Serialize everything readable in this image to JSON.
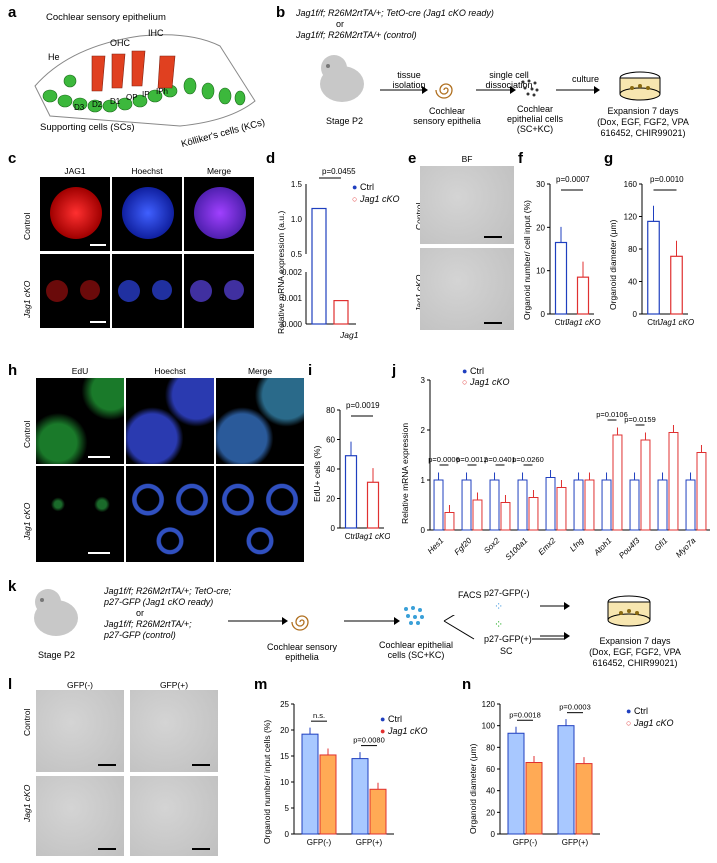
{
  "panels": {
    "a": {
      "letter": "a",
      "title": "Cochlear sensory epithelium",
      "labels": {
        "he": "He",
        "ohc": "OHC",
        "ihc": "IHC",
        "d3": "D3",
        "d2": "D2",
        "d1": "D1",
        "op": "OP",
        "ip": "IP",
        "iph": "IPh",
        "sc": "Supporting cells (SCs)",
        "kc": "Kölliker's cells (KCs)"
      }
    },
    "b": {
      "letter": "b",
      "geno1": "Jag1f/f; R26M2rtTA/+; TetO-cre (Jag1 cKO ready)",
      "or": "or",
      "geno2": "Jag1f/f; R26M2rtTA/+ (control)",
      "stage": "Stage P2",
      "step1": "tissue isolation",
      "step2": "single cell dissociation",
      "step3": "culture",
      "tissue": "Cochlear sensory epithelia",
      "cells": "Cochlear epithelial cells (SC+KC)",
      "exp1": "Expansion 7 days",
      "exp2": "(Dox, EGF, FGF2, VPA",
      "exp3": "616452, CHIR99021)"
    },
    "c": {
      "letter": "c",
      "col1": "JAG1",
      "col2": "Hoechst",
      "col3": "Merge",
      "row1": "Control",
      "row2": "Jag1 cKO"
    },
    "e": {
      "letter": "e",
      "title": "BF",
      "row1": "Control",
      "row2": "Jag1 cKO"
    },
    "h": {
      "letter": "h",
      "col1": "EdU",
      "col2": "Hoechst",
      "col3": "Merge",
      "row1": "Control",
      "row2": "Jag1 cKO"
    },
    "k": {
      "letter": "k",
      "geno1": "Jag1f/f; R26M2rtTA/+; TetO-cre;",
      "geno1b": "p27-GFP (Jag1 cKO ready)",
      "or": "or",
      "geno2": "Jag1f/f; R26M2rtTA/+;",
      "geno2b": "p27-GFP (control)",
      "stage": "Stage P2",
      "tissue": "Cochlear sensory epithelia",
      "cells": "Cochlear epithelial cells (SC+KC)",
      "facs": "FACS",
      "neg": "p27-GFP(-)",
      "pos": "p27-GFP(+)",
      "sc": "SC",
      "exp1": "Expansion 7 days",
      "exp2": "(Dox, EGF, FGF2, VPA",
      "exp3": "616452, CHIR99021)"
    },
    "l": {
      "letter": "l",
      "col1": "GFP(-)",
      "col2": "GFP(+)",
      "row1": "Control",
      "row2": "Jag1 cKO"
    }
  },
  "legend": {
    "ctrl": "Ctrl",
    "cko": "Jag1 cKO"
  },
  "colors": {
    "blue": "#1f3fbf",
    "red": "#e03030",
    "lightblue": "#a8c8ff",
    "orange": "#ffaa55"
  },
  "chart_data": [
    {
      "id": "d",
      "type": "bar",
      "ylabel": "Relative mRNA expression (a.u.)",
      "xlabel": "Jag1",
      "categories": [
        "Ctrl",
        "Jag1 cKO"
      ],
      "values": [
        1.15,
        0.0009
      ],
      "pvalue": "p=0.0455",
      "yticks_top": [
        "1.5",
        "1.0",
        "0.5"
      ],
      "yticks_bottom": [
        "0.002",
        "0.001",
        "0.000"
      ]
    },
    {
      "id": "f",
      "type": "bar",
      "ylabel": "Organoid number/ cell input (%)",
      "categories": [
        "Ctrl",
        "Jag1 cKO"
      ],
      "values": [
        16.5,
        8.5
      ],
      "ylim": [
        0,
        30
      ],
      "yticks": [
        "0",
        "10",
        "20",
        "30"
      ],
      "pvalue": "p=0.0007"
    },
    {
      "id": "g",
      "type": "bar",
      "ylabel": "Organoid diameter (μm)",
      "categories": [
        "Ctrl",
        "Jag1 cKO"
      ],
      "values": [
        114,
        71
      ],
      "ylim": [
        0,
        160
      ],
      "yticks": [
        "0",
        "40",
        "80",
        "120",
        "160"
      ],
      "pvalue": "p=0.0010"
    },
    {
      "id": "i",
      "type": "bar",
      "ylabel": "EdU+ cells (%)",
      "categories": [
        "Ctrl",
        "Jag1 cKO"
      ],
      "values": [
        49,
        31
      ],
      "ylim": [
        0,
        80
      ],
      "yticks": [
        "0",
        "20",
        "40",
        "60",
        "80"
      ],
      "pvalue": "p=0.0019"
    },
    {
      "id": "j",
      "type": "bar",
      "ylabel": "Relative mRNA expression",
      "ylim": [
        0,
        3
      ],
      "yticks": [
        "0",
        "1",
        "2",
        "3"
      ],
      "categories": [
        "Hes1",
        "Fgf20",
        "Sox2",
        "S100a1",
        "Emx2",
        "Lfng",
        "Atoh1",
        "Pou4f3",
        "Gfi1",
        "Myo7a"
      ],
      "series": [
        {
          "name": "Ctrl",
          "values": [
            1.0,
            1.0,
            1.0,
            1.0,
            1.05,
            1.0,
            1.0,
            1.0,
            1.0,
            1.0
          ]
        },
        {
          "name": "Jag1 cKO",
          "values": [
            0.35,
            0.6,
            0.55,
            0.65,
            0.85,
            1.0,
            1.9,
            1.8,
            1.95,
            1.55
          ]
        }
      ],
      "pvalues": [
        "p=0.0006",
        "p=0.0012",
        "p=0.0401",
        "p=0.0260",
        "",
        "",
        "p=0.0106",
        "p=0.0159",
        "",
        ""
      ]
    },
    {
      "id": "m",
      "type": "bar",
      "ylabel": "Organoid number/ input cells (%)",
      "ylim": [
        0,
        25
      ],
      "yticks": [
        "0",
        "5",
        "10",
        "15",
        "20",
        "25"
      ],
      "categories": [
        "GFP(-)",
        "GFP(+)"
      ],
      "series": [
        {
          "name": "Ctrl",
          "values": [
            19.2,
            14.5
          ]
        },
        {
          "name": "Jag1 cKO",
          "values": [
            15.2,
            8.6
          ]
        }
      ],
      "pvalues": [
        "n.s.",
        "p=0.0080"
      ]
    },
    {
      "id": "n",
      "type": "bar",
      "ylabel": "Organoid diameter (μm)",
      "ylim": [
        0,
        120
      ],
      "yticks": [
        "0",
        "20",
        "40",
        "60",
        "80",
        "100",
        "120"
      ],
      "categories": [
        "GFP(-)",
        "GFP(+)"
      ],
      "series": [
        {
          "name": "Ctrl",
          "values": [
            93,
            100
          ]
        },
        {
          "name": "Jag1 cKO",
          "values": [
            66,
            65
          ]
        }
      ],
      "pvalues": [
        "p=0.0018",
        "p=0.0003"
      ]
    }
  ]
}
